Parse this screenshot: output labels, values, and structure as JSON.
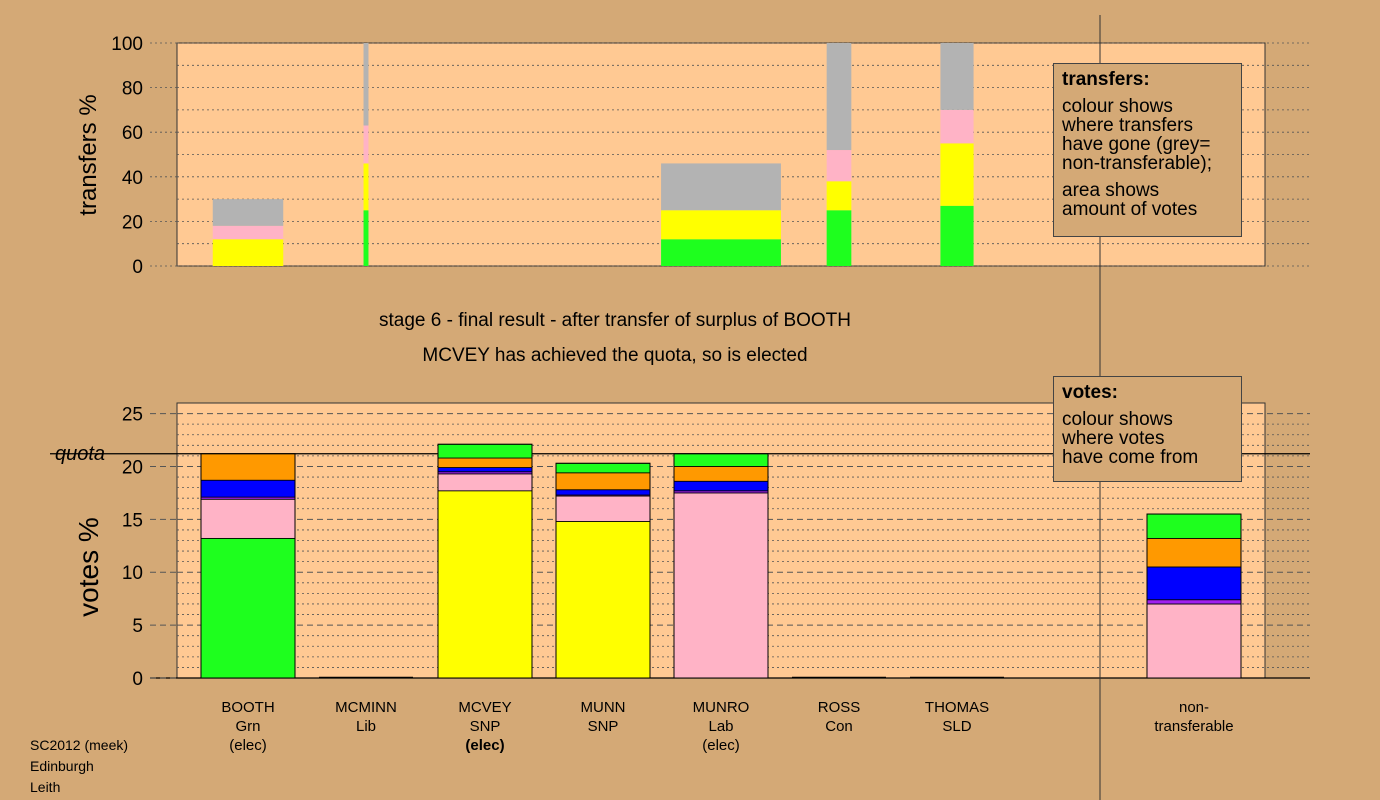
{
  "chart_data": [
    {
      "type": "bar",
      "stacked": true,
      "ylabel": "transfers %",
      "ylim": [
        0,
        100
      ],
      "yticks": [
        0,
        20,
        40,
        60,
        80,
        100
      ],
      "colors": {
        "green": "#1eff1e",
        "yellow": "#ffff00",
        "pink": "#ffb3c6",
        "grey": "#b3b3b3"
      },
      "bars": [
        {
          "candidate": "BOOTH",
          "width_rel": 1.0,
          "segments": [
            {
              "color": "yellow",
              "value": 12
            },
            {
              "color": "pink",
              "value": 6
            },
            {
              "color": "grey",
              "value": 12
            }
          ]
        },
        {
          "candidate": "MCMINN",
          "width_rel": 0.07,
          "segments": [
            {
              "color": "green",
              "value": 25
            },
            {
              "color": "yellow",
              "value": 21
            },
            {
              "color": "pink",
              "value": 17
            },
            {
              "color": "grey",
              "value": 37
            }
          ]
        },
        {
          "candidate": "MUNRO",
          "width_rel": 1.7,
          "segments": [
            {
              "color": "green",
              "value": 12
            },
            {
              "color": "yellow",
              "value": 13
            },
            {
              "color": "grey",
              "value": 21
            }
          ]
        },
        {
          "candidate": "ROSS",
          "width_rel": 0.35,
          "segments": [
            {
              "color": "green",
              "value": 25
            },
            {
              "color": "yellow",
              "value": 13
            },
            {
              "color": "pink",
              "value": 14
            },
            {
              "color": "grey",
              "value": 48
            }
          ]
        },
        {
          "candidate": "THOMAS",
          "width_rel": 0.47,
          "segments": [
            {
              "color": "green",
              "value": 27
            },
            {
              "color": "yellow",
              "value": 28
            },
            {
              "color": "pink",
              "value": 15
            },
            {
              "color": "grey",
              "value": 30
            }
          ]
        }
      ]
    },
    {
      "type": "bar",
      "stacked": true,
      "ylabel": "votes %",
      "ylim": [
        0,
        26
      ],
      "yticks": [
        0,
        5,
        10,
        15,
        20,
        25
      ],
      "quota": 21.2,
      "quota_label": "quota",
      "colors": {
        "green": "#1eff1e",
        "yellow": "#ffff00",
        "pink": "#ffb3c6",
        "purple": "#a020f0",
        "blue": "#0000ff",
        "orange": "#ff9900"
      },
      "categories": [
        {
          "name": "BOOTH",
          "party": "Grn",
          "status": "(elec)",
          "status_bold": false
        },
        {
          "name": "MCMINN",
          "party": "Lib",
          "status": "",
          "status_bold": false
        },
        {
          "name": "MCVEY",
          "party": "SNP",
          "status": "(elec)",
          "status_bold": true
        },
        {
          "name": "MUNN",
          "party": "SNP",
          "status": "",
          "status_bold": false
        },
        {
          "name": "MUNRO",
          "party": "Lab",
          "status": "(elec)",
          "status_bold": false
        },
        {
          "name": "ROSS",
          "party": "Con",
          "status": "",
          "status_bold": false
        },
        {
          "name": "THOMAS",
          "party": "SLD",
          "status": "",
          "status_bold": false
        },
        {
          "name": "non-",
          "party": "transferable",
          "status": "",
          "status_bold": false
        }
      ],
      "stacks": [
        [
          {
            "color": "green",
            "value": 13.2
          },
          {
            "color": "pink",
            "value": 3.7
          },
          {
            "color": "purple",
            "value": 0.2
          },
          {
            "color": "blue",
            "value": 1.6
          },
          {
            "color": "orange",
            "value": 2.5
          }
        ],
        [],
        [
          {
            "color": "yellow",
            "value": 17.7
          },
          {
            "color": "pink",
            "value": 1.6
          },
          {
            "color": "purple",
            "value": 0.2
          },
          {
            "color": "blue",
            "value": 0.4
          },
          {
            "color": "orange",
            "value": 0.9
          },
          {
            "color": "green",
            "value": 1.3
          }
        ],
        [
          {
            "color": "yellow",
            "value": 14.8
          },
          {
            "color": "pink",
            "value": 2.4
          },
          {
            "color": "purple",
            "value": 0.1
          },
          {
            "color": "blue",
            "value": 0.5
          },
          {
            "color": "orange",
            "value": 1.6
          },
          {
            "color": "green",
            "value": 0.9
          }
        ],
        [
          {
            "color": "pink",
            "value": 17.5
          },
          {
            "color": "purple",
            "value": 0.2
          },
          {
            "color": "blue",
            "value": 0.9
          },
          {
            "color": "orange",
            "value": 1.4
          },
          {
            "color": "green",
            "value": 1.2
          }
        ],
        [],
        [],
        [
          {
            "color": "pink",
            "value": 7.0
          },
          {
            "color": "purple",
            "value": 0.4
          },
          {
            "color": "blue",
            "value": 3.1
          },
          {
            "color": "orange",
            "value": 2.7
          },
          {
            "color": "green",
            "value": 2.3
          }
        ]
      ]
    }
  ],
  "captions": {
    "line1": "stage 6 - final result - after transfer of surplus of BOOTH",
    "line2": "MCVEY has achieved the quota, so is elected"
  },
  "legend_transfers": {
    "title": "transfers:",
    "lines1": [
      "colour shows",
      "where transfers",
      "have gone (grey=",
      "non-transferable);"
    ],
    "lines2": [
      "area shows",
      "amount of votes"
    ]
  },
  "legend_votes": {
    "title": "votes:",
    "lines1": [
      "colour shows",
      "where votes",
      "have come from"
    ]
  },
  "footer": [
    "SC2012 (meek)",
    "Edinburgh",
    "Leith"
  ]
}
